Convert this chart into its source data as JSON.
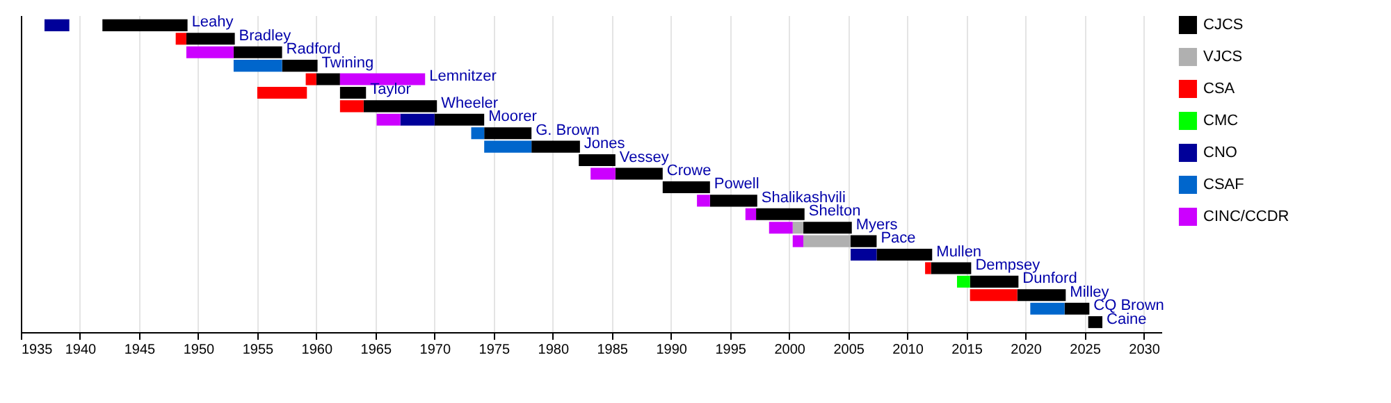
{
  "chart_data": {
    "type": "bar",
    "orientation": "horizontal",
    "categories": [
      "Leahy",
      "Bradley",
      "Radford",
      "Twining",
      "Lemnitzer",
      "Taylor",
      "Wheeler",
      "Moorer",
      "G. Brown",
      "Jones",
      "Vessey",
      "Crowe",
      "Powell",
      "Shalikashvili",
      "Shelton",
      "Myers",
      "Pace",
      "Mullen",
      "Dempsey",
      "Dunford",
      "Milley",
      "CQ Brown",
      "Caine"
    ],
    "series": [
      {
        "name": "CJCS",
        "color": "#000000",
        "values": [
          7.2,
          4.1,
          4.1,
          3,
          2,
          2.2,
          6.2,
          4.2,
          4,
          4.1,
          3.1,
          4,
          4,
          4,
          4.1,
          4.1,
          2.2,
          4.7,
          3.4,
          4.1,
          4.1,
          2.1,
          1.2
        ],
        "base": [
          1941.9,
          1949,
          1953,
          1957.1,
          1960,
          1962,
          1964,
          1970,
          1974.2,
          1978.2,
          1982.2,
          1985.3,
          1989.3,
          1993.3,
          1997.2,
          2001.2,
          2005.2,
          2007.4,
          2012,
          2015.3,
          2019.3,
          2023.3,
          2025.3
        ]
      },
      {
        "name": "VJCS",
        "color": "#b0b0b0",
        "values": [
          null,
          null,
          null,
          null,
          null,
          null,
          null,
          null,
          null,
          null,
          null,
          null,
          null,
          null,
          null,
          0.9,
          4,
          null,
          null,
          null,
          null,
          null,
          null
        ],
        "base": [
          null,
          null,
          null,
          null,
          null,
          null,
          null,
          null,
          null,
          null,
          null,
          null,
          null,
          null,
          null,
          2000.3,
          2001.2,
          null,
          null,
          null,
          null,
          null,
          null
        ]
      },
      {
        "name": "CSA",
        "color": "#ff0000",
        "values": [
          null,
          0.9,
          null,
          null,
          0.9,
          4.2,
          2,
          null,
          null,
          null,
          null,
          null,
          null,
          null,
          null,
          null,
          null,
          null,
          0.5,
          null,
          4,
          null,
          null
        ],
        "base": [
          null,
          1948.1,
          null,
          null,
          1959.1,
          1955,
          1962,
          null,
          null,
          null,
          null,
          null,
          null,
          null,
          null,
          null,
          null,
          null,
          2011.5,
          null,
          2015.3,
          null,
          null
        ]
      },
      {
        "name": "CMC",
        "color": "#00ff00",
        "values": [
          null,
          null,
          null,
          null,
          null,
          null,
          null,
          null,
          null,
          null,
          null,
          null,
          null,
          null,
          null,
          null,
          null,
          null,
          null,
          1.1,
          null,
          null,
          null
        ],
        "base": [
          null,
          null,
          null,
          null,
          null,
          null,
          null,
          null,
          null,
          null,
          null,
          null,
          null,
          null,
          null,
          null,
          null,
          null,
          null,
          2014.2,
          null,
          null,
          null
        ]
      },
      {
        "name": "CNO",
        "color": "#000099",
        "values": [
          2.1,
          null,
          null,
          null,
          null,
          null,
          null,
          2.9,
          null,
          null,
          null,
          null,
          null,
          null,
          null,
          null,
          null,
          2.2,
          null,
          null,
          null,
          null,
          null
        ],
        "base": [
          1937,
          null,
          null,
          null,
          null,
          null,
          null,
          1967.1,
          null,
          null,
          null,
          null,
          null,
          null,
          null,
          null,
          null,
          2005.2,
          null,
          null,
          null,
          null,
          null
        ]
      },
      {
        "name": "CSAF",
        "color": "#0066cc",
        "values": [
          null,
          null,
          null,
          4.1,
          null,
          null,
          null,
          null,
          1.1,
          4,
          null,
          null,
          null,
          null,
          null,
          null,
          null,
          null,
          null,
          null,
          null,
          2.9,
          null
        ],
        "base": [
          null,
          null,
          null,
          1953,
          null,
          null,
          null,
          null,
          1973.1,
          1974.2,
          null,
          null,
          null,
          null,
          null,
          null,
          null,
          null,
          null,
          null,
          null,
          2020.4,
          null
        ]
      },
      {
        "name": "CINC/CCDR",
        "color": "#cc00ff",
        "values": [
          null,
          null,
          4,
          null,
          7.2,
          null,
          null,
          2,
          null,
          null,
          null,
          2.1,
          null,
          1.1,
          0.9,
          2,
          0.9,
          null,
          null,
          null,
          null,
          null,
          null
        ],
        "base": [
          null,
          null,
          1949,
          null,
          1962,
          null,
          null,
          1965.1,
          null,
          null,
          null,
          1983.2,
          null,
          1992.2,
          1996.3,
          1998.3,
          2000.3,
          null,
          null,
          null,
          null,
          null,
          null
        ]
      }
    ],
    "xlim": [
      1935,
      2031.5
    ],
    "xticks": [
      1935,
      1940,
      1945,
      1950,
      1955,
      1960,
      1965,
      1970,
      1975,
      1980,
      1985,
      1990,
      1995,
      2000,
      2005,
      2010,
      2015,
      2020,
      2025,
      2030
    ],
    "grid": "x",
    "legend": "right",
    "tick_labels": "x"
  }
}
